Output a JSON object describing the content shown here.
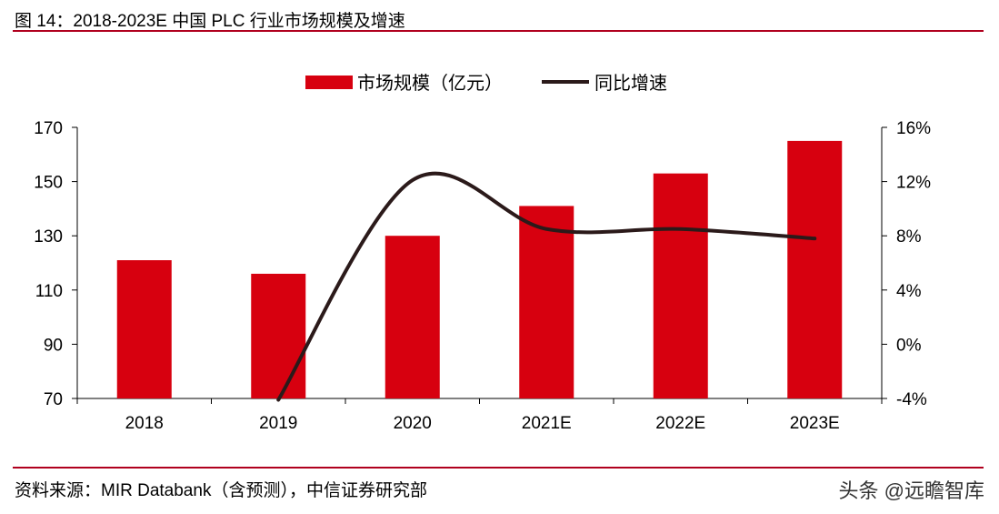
{
  "title": "图 14：2018-2023E 中国 PLC 行业市场规模及增速",
  "source": "资料来源：MIR Databank（含预测），中信证券研究部",
  "watermark": "头条 @远瞻智库",
  "chart_data": {
    "type": "bar+line",
    "categories": [
      "2018",
      "2019",
      "2020",
      "2021E",
      "2022E",
      "2023E"
    ],
    "series": [
      {
        "name": "市场规模（亿元）",
        "type": "bar",
        "axis": "left",
        "color": "#d7000f",
        "values": [
          121,
          116,
          130,
          141,
          153,
          165
        ]
      },
      {
        "name": "同比增速",
        "type": "line",
        "axis": "right",
        "color": "#2b1a1a",
        "values": [
          null,
          -4.1,
          12.1,
          8.5,
          8.5,
          7.8
        ]
      }
    ],
    "left_axis": {
      "ylim": [
        70,
        170
      ],
      "ticks": [
        "70",
        "90",
        "110",
        "130",
        "150",
        "170"
      ]
    },
    "right_axis": {
      "ylim": [
        -4,
        16
      ],
      "ticks": [
        "-4%",
        "0%",
        "4%",
        "8%",
        "12%",
        "16%"
      ]
    },
    "legend_placement": "top-center",
    "grid": false
  }
}
